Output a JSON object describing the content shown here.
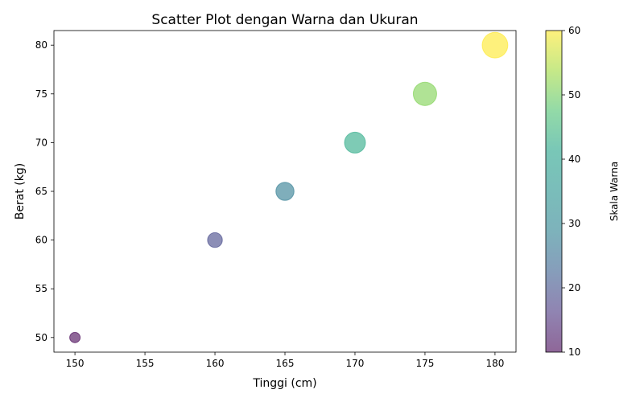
{
  "chart_data": {
    "type": "scatter",
    "title": "Scatter Plot dengan Warna dan Ukuran",
    "xlabel": "Tinggi (cm)",
    "ylabel": "Berat (kg)",
    "xlim": [
      148.5,
      181.5
    ],
    "ylim": [
      48.5,
      81.5
    ],
    "xticks": [
      150,
      155,
      160,
      165,
      170,
      175,
      180
    ],
    "yticks": [
      50,
      55,
      60,
      65,
      70,
      75,
      80
    ],
    "points": [
      {
        "x": 150,
        "y": 50,
        "color_value": 10,
        "size": 100
      },
      {
        "x": 160,
        "y": 60,
        "color_value": 20,
        "size": 200
      },
      {
        "x": 165,
        "y": 65,
        "color_value": 30,
        "size": 300
      },
      {
        "x": 170,
        "y": 70,
        "color_value": 40,
        "size": 400
      },
      {
        "x": 175,
        "y": 75,
        "color_value": 50,
        "size": 500
      },
      {
        "x": 180,
        "y": 80,
        "color_value": 60,
        "size": 600
      }
    ],
    "point_alpha": 0.6,
    "grid": false,
    "colorbar": {
      "label": "Skala Warna",
      "colormap": "viridis",
      "range": [
        10,
        60
      ],
      "ticks": [
        10,
        20,
        30,
        40,
        50,
        60
      ]
    }
  }
}
